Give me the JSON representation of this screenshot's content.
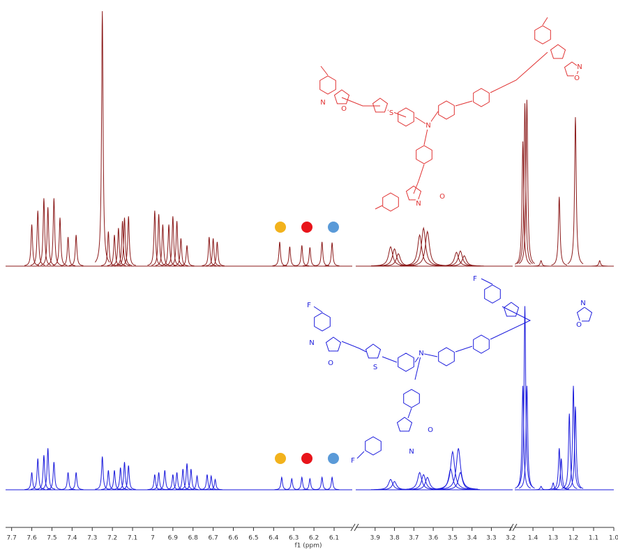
{
  "chart_data": {
    "type": "line",
    "xlabel": "f1 (ppm)",
    "xsegments": [
      {
        "xlim": [
          7.73,
          6.01
        ],
        "xticks": [
          7.7,
          7.6,
          7.5,
          7.4,
          7.3,
          7.2,
          7.1,
          7.0,
          6.9,
          6.8,
          6.7,
          6.6,
          6.5,
          6.4,
          6.3,
          6.2,
          6.1
        ]
      },
      {
        "xlim": [
          4.0,
          3.19
        ],
        "xticks": [
          3.9,
          3.8,
          3.7,
          3.6,
          3.5,
          3.4,
          3.3,
          3.2
        ]
      },
      {
        "xlim": [
          1.49,
          1.0
        ],
        "xticks": [
          1.4,
          1.3,
          1.2,
          1.1,
          {
            "value": 1.0,
            "label": "1.0"
          }
        ]
      }
    ],
    "ylim": [
      0,
      370
    ],
    "series": [
      {
        "color": "#8b1a1a",
        "x": [
          7.6,
          7.57,
          7.54,
          7.52,
          7.49,
          7.46,
          7.42,
          7.38,
          7.25,
          7.22,
          7.19,
          7.17,
          7.15,
          7.14,
          7.12,
          6.99,
          6.97,
          6.95,
          6.92,
          6.9,
          6.88,
          6.86,
          6.83,
          6.72,
          6.7,
          6.68,
          6.37,
          6.32,
          6.26,
          6.22,
          6.16,
          6.11,
          3.82,
          3.8,
          3.78,
          3.67,
          3.65,
          3.63,
          3.48,
          3.46,
          3.44,
          1.45,
          1.44,
          1.43,
          1.36,
          1.27,
          1.19,
          1.07
        ],
        "values": [
          60,
          80,
          98,
          85,
          98,
          70,
          42,
          45,
          368,
          50,
          45,
          55,
          65,
          70,
          72,
          80,
          75,
          60,
          60,
          72,
          65,
          40,
          30,
          42,
          40,
          35,
          35,
          28,
          30,
          27,
          35,
          34,
          28,
          25,
          18,
          45,
          55,
          50,
          20,
          22,
          15,
          180,
          235,
          240,
          8,
          100,
          215,
          8
        ]
      },
      {
        "color": "#1a1adc",
        "x": [
          7.6,
          7.57,
          7.54,
          7.52,
          7.49,
          7.42,
          7.38,
          7.25,
          7.22,
          7.19,
          7.16,
          7.14,
          7.12,
          6.99,
          6.97,
          6.94,
          6.9,
          6.88,
          6.85,
          6.83,
          6.81,
          6.78,
          6.73,
          6.71,
          6.69,
          6.36,
          6.31,
          6.26,
          6.22,
          6.16,
          6.11,
          3.82,
          3.8,
          3.67,
          3.65,
          3.63,
          3.51,
          3.5,
          3.47,
          3.46,
          1.45,
          1.44,
          1.43,
          1.36,
          1.3,
          1.27,
          1.26,
          1.22,
          1.2,
          1.19
        ],
        "values": [
          25,
          45,
          50,
          60,
          40,
          25,
          25,
          48,
          28,
          28,
          32,
          40,
          35,
          22,
          25,
          28,
          22,
          25,
          30,
          38,
          30,
          20,
          22,
          20,
          15,
          18,
          16,
          18,
          16,
          18,
          18,
          15,
          12,
          25,
          22,
          18,
          30,
          55,
          60,
          25,
          150,
          265,
          150,
          5,
          10,
          60,
          45,
          110,
          150,
          120
        ]
      }
    ],
    "structures": [
      {
        "color": "#e03030",
        "atoms": [
          "N",
          "O",
          "S",
          "N",
          "N",
          "O",
          "N",
          "O"
        ]
      },
      {
        "color": "#1a1adc",
        "atoms": [
          "F",
          "N",
          "O",
          "S",
          "N",
          "F",
          "N",
          "O",
          "F",
          "N",
          "O"
        ]
      }
    ]
  }
}
